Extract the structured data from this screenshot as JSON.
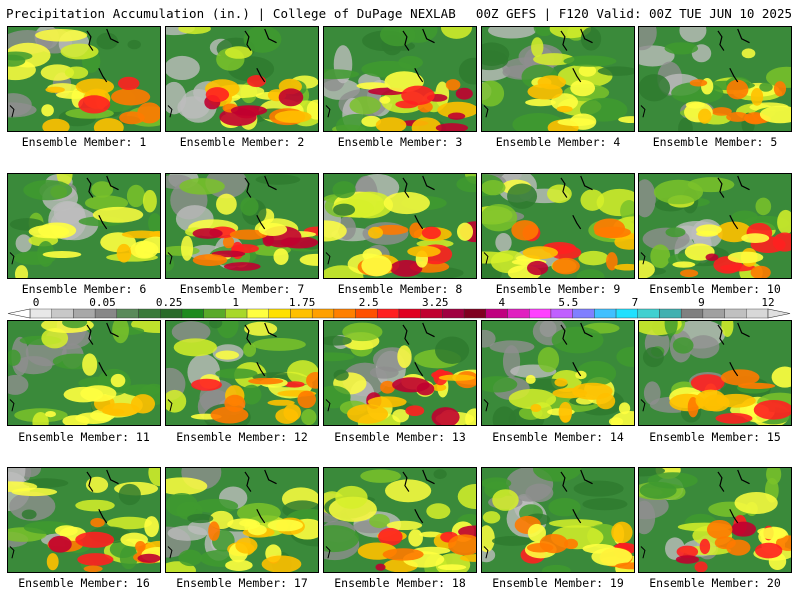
{
  "header": {
    "title": "Precipitation Accumulation (in.) | College of DuPage NEXLAB",
    "run_info": "00Z GEFS | F120 Valid: 00Z TUE JUN 10 2025"
  },
  "members": [
    {
      "label": "Ensemble Member: 1",
      "intensity": 0.55
    },
    {
      "label": "Ensemble Member: 2",
      "intensity": 0.75
    },
    {
      "label": "Ensemble Member: 3",
      "intensity": 0.8
    },
    {
      "label": "Ensemble Member: 4",
      "intensity": 0.35
    },
    {
      "label": "Ensemble Member: 5",
      "intensity": 0.5
    },
    {
      "label": "Ensemble Member: 6",
      "intensity": 0.35
    },
    {
      "label": "Ensemble Member: 7",
      "intensity": 0.85
    },
    {
      "label": "Ensemble Member: 8",
      "intensity": 0.75
    },
    {
      "label": "Ensemble Member: 9",
      "intensity": 0.7
    },
    {
      "label": "Ensemble Member: 10",
      "intensity": 0.7
    },
    {
      "label": "Ensemble Member: 11",
      "intensity": 0.35
    },
    {
      "label": "Ensemble Member: 12",
      "intensity": 0.6
    },
    {
      "label": "Ensemble Member: 13",
      "intensity": 0.85
    },
    {
      "label": "Ensemble Member: 14",
      "intensity": 0.5
    },
    {
      "label": "Ensemble Member: 15",
      "intensity": 0.65
    },
    {
      "label": "Ensemble Member: 16",
      "intensity": 0.8
    },
    {
      "label": "Ensemble Member: 17",
      "intensity": 0.65
    },
    {
      "label": "Ensemble Member: 18",
      "intensity": 0.8
    },
    {
      "label": "Ensemble Member: 19",
      "intensity": 0.7
    },
    {
      "label": "Ensemble Member: 20",
      "intensity": 0.75
    }
  ],
  "colorbar": {
    "tick_labels": [
      "0",
      "0.05",
      "0.25",
      "1",
      "1.75",
      "2.5",
      "3.25",
      "4",
      "5.5",
      "7",
      "9",
      "12"
    ],
    "colors": [
      "#e8e8e8",
      "#c8c8c8",
      "#a8a8a8",
      "#888888",
      "#5a8a5a",
      "#3a7a3a",
      "#2a6a2a",
      "#1e8a1e",
      "#5aaa2a",
      "#a8d82a",
      "#ffff40",
      "#ffe000",
      "#ffc000",
      "#ffa000",
      "#ff8000",
      "#ff5000",
      "#ff2020",
      "#e00020",
      "#c00030",
      "#a00040",
      "#800020",
      "#c00080",
      "#e020c0",
      "#ff40ff",
      "#c060ff",
      "#8080ff",
      "#40c0ff",
      "#20e0ff",
      "#40d0d0",
      "#40b0b0",
      "#808080",
      "#a0a0a0",
      "#c0c0c0",
      "#d8d8d8"
    ]
  }
}
